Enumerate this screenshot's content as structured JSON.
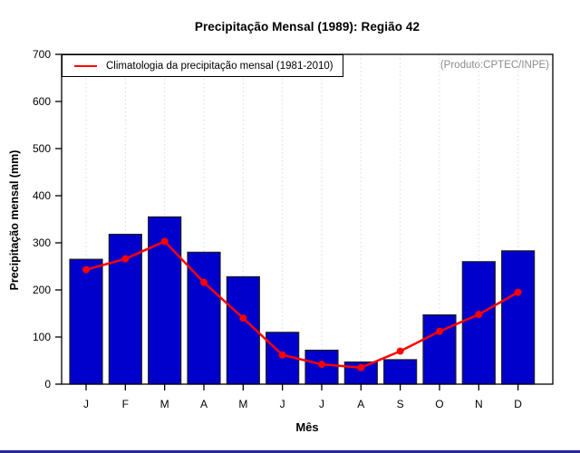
{
  "title": "Precipitação Mensal (1989): Região 42",
  "annotation": "(Produto:CPTEC/INPE)",
  "legend": {
    "label": "Climatologia da precipitação mensal (1981-2010)"
  },
  "colors": {
    "bar_fill": "#0000cd",
    "bar_border": "#1f1f1f",
    "climatology_line": "#ff0000",
    "grid_line": "#d9d9d9",
    "axis": "#000000",
    "annotation_text": "#8c8c8c",
    "taskbar_strip": "#26269b"
  },
  "chart_data": {
    "type": "bar",
    "title": "Precipitação Mensal (1989): Região 42",
    "xlabel": "Mês",
    "ylabel": "Precipitação mensal (mm)",
    "categories": [
      "J",
      "F",
      "M",
      "A",
      "M",
      "J",
      "J",
      "A",
      "S",
      "O",
      "N",
      "D"
    ],
    "series": [
      {
        "name": "Precipitação mensal 1989",
        "type": "bar",
        "values": [
          265,
          318,
          355,
          280,
          228,
          110,
          72,
          47,
          52,
          147,
          260,
          283
        ]
      },
      {
        "name": "Climatologia da precipitação mensal (1981-2010)",
        "type": "line",
        "values": [
          243,
          266,
          303,
          216,
          140,
          62,
          42,
          35,
          70,
          112,
          148,
          195
        ]
      }
    ],
    "ylim": [
      0,
      700
    ],
    "yticks": [
      0,
      100,
      200,
      300,
      400,
      500,
      600,
      700
    ],
    "grid": "vertical-dotted",
    "legend_position": "top-left",
    "annotation": "(Produto:CPTEC/INPE)"
  }
}
